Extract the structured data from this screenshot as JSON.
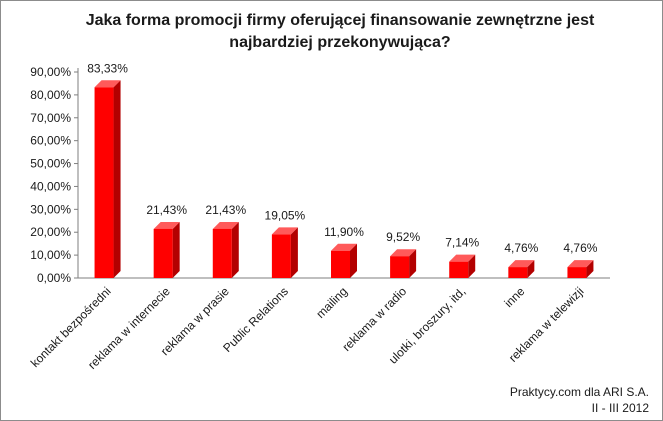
{
  "chart_data": {
    "type": "bar",
    "title_lines": [
      "Jaka forma promocji firmy oferującej finansowanie zewnętrzne jest",
      "najbardziej przekonywująca?"
    ],
    "categories": [
      "kontakt bezpośredni",
      "reklama w internecie",
      "reklama w prasie",
      "Public Relations",
      "mailing",
      "reklama w radio",
      "ulotki, broszury, itd,",
      "inne",
      "reklama w telewizji"
    ],
    "values": [
      83.33,
      21.43,
      21.43,
      19.05,
      11.9,
      9.52,
      7.14,
      4.76,
      4.76
    ],
    "data_labels": [
      "83,33%",
      "21,43%",
      "21,43%",
      "19,05%",
      "11,90%",
      "9,52%",
      "7,14%",
      "4,76%",
      "4,76%"
    ],
    "y_ticks": [
      "0,00%",
      "10,00%",
      "20,00%",
      "30,00%",
      "40,00%",
      "50,00%",
      "60,00%",
      "70,00%",
      "80,00%",
      "90,00%"
    ],
    "ylim": [
      0,
      90
    ],
    "grid": false,
    "bar_color": "#ff0000",
    "bar_side_color": "#b30000",
    "bar_top_color": "#ff5a5a"
  },
  "source": {
    "line1": "Praktycy.com dla ARI S.A.",
    "line2": "II - III 2012"
  }
}
